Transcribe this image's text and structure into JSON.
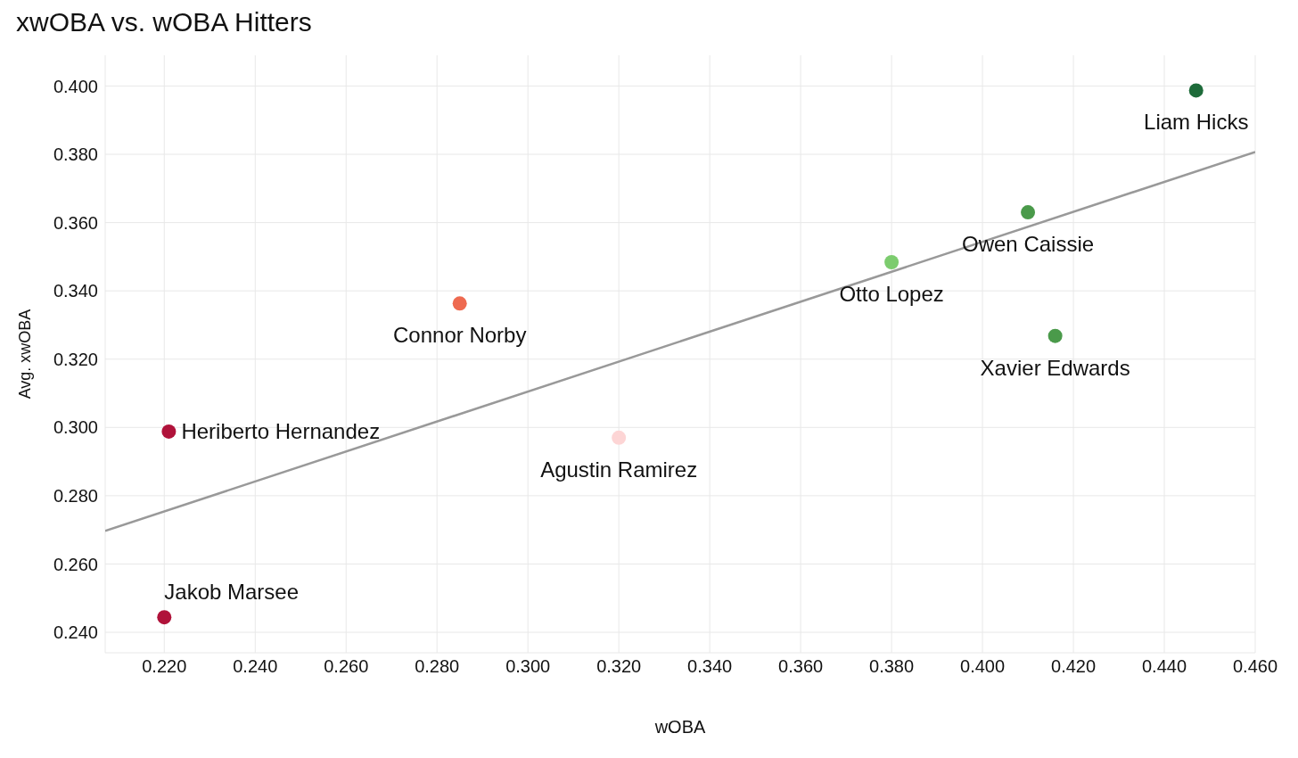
{
  "chart_data": {
    "type": "scatter",
    "title": "xwOBA vs. wOBA Hitters",
    "xlabel": "wOBA",
    "ylabel": "Avg. xwOBA",
    "series": [
      {
        "x": [
          0.447,
          0.41,
          0.38,
          0.416,
          0.285,
          0.32,
          0.221,
          0.22
        ],
        "values": [
          0.3987,
          0.363,
          0.3484,
          0.3268,
          0.3363,
          0.297,
          0.2988,
          0.2444
        ],
        "colors": [
          "#1e6b3a",
          "#4a9a4a",
          "#7ccc6e",
          "#4a9a4a",
          "#ee6a50",
          "#fdd5d5",
          "#b0123a",
          "#b0123a"
        ]
      },
      {
        "type": "line",
        "x": [
          0.207,
          0.46
        ],
        "values": [
          0.2697,
          0.3807
        ],
        "color": "#999999",
        "marker": "none"
      }
    ],
    "annotations": [
      {
        "text": "Liam Hicks",
        "x": 0.447,
        "y": 0.3987
      },
      {
        "text": "Owen Caissie",
        "x": 0.41,
        "y": 0.363
      },
      {
        "text": "Otto Lopez",
        "x": 0.38,
        "y": 0.3484
      },
      {
        "text": "Xavier Edwards",
        "x": 0.416,
        "y": 0.3268
      },
      {
        "text": "Connor Norby",
        "x": 0.285,
        "y": 0.3363
      },
      {
        "text": "Agustin Ramirez",
        "x": 0.32,
        "y": 0.297
      },
      {
        "text": "Heriberto Hernandez",
        "x": 0.221,
        "y": 0.2988
      },
      {
        "text": "Jakob Marsee",
        "x": 0.22,
        "y": 0.2444
      }
    ],
    "xlim": [
      0.207,
      0.46
    ],
    "ylim": [
      0.234,
      0.409
    ],
    "xticks": [
      {
        "value": 0.22,
        "label": "0.220"
      },
      {
        "value": 0.24,
        "label": "0.240"
      },
      {
        "value": 0.26,
        "label": "0.260"
      },
      {
        "value": 0.28,
        "label": "0.280"
      },
      {
        "value": 0.3,
        "label": "0.300"
      },
      {
        "value": 0.32,
        "label": "0.320"
      },
      {
        "value": 0.34,
        "label": "0.340"
      },
      {
        "value": 0.36,
        "label": "0.360"
      },
      {
        "value": 0.38,
        "label": "0.380"
      },
      {
        "value": 0.4,
        "label": "0.400"
      },
      {
        "value": 0.42,
        "label": "0.420"
      },
      {
        "value": 0.44,
        "label": "0.440"
      },
      {
        "value": 0.46,
        "label": "0.460"
      }
    ],
    "yticks": [
      {
        "value": 0.24,
        "label": "0.240"
      },
      {
        "value": 0.26,
        "label": "0.260"
      },
      {
        "value": 0.28,
        "label": "0.280"
      },
      {
        "value": 0.3,
        "label": "0.300"
      },
      {
        "value": 0.32,
        "label": "0.320"
      },
      {
        "value": 0.34,
        "label": "0.340"
      },
      {
        "value": 0.36,
        "label": "0.360"
      },
      {
        "value": 0.38,
        "label": "0.380"
      },
      {
        "value": 0.4,
        "label": "0.400"
      }
    ],
    "grid": true,
    "legend": false,
    "marker": "circle",
    "line_style": "solid"
  }
}
